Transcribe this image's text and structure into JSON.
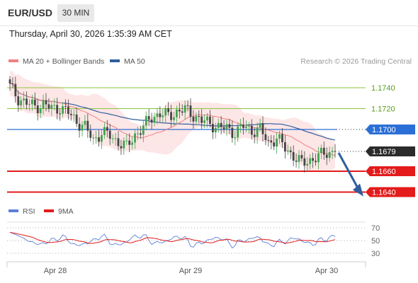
{
  "header": {
    "symbol": "EUR/USD",
    "timeframe": "30 MIN",
    "timestamp": "Thursday, April 30, 2026 1:35:39 AM CET"
  },
  "legend": {
    "items": [
      {
        "label": "MA 20 + Bollinger Bands",
        "color": "#f08080"
      },
      {
        "label": "MA 50",
        "color": "#2f5d9e"
      }
    ],
    "credit": "Research © 2026 Trading Central"
  },
  "chart_data": [
    {
      "type": "candlestick",
      "title": "EUR/USD 30 MIN",
      "ylim": [
        1.163,
        1.175
      ],
      "x_ticks": [
        "Apr 28",
        "Apr 29",
        "Apr 30"
      ],
      "horizontal_levels": [
        {
          "value": 1.174,
          "label": "1.1740",
          "color": "#8cc63f",
          "style": "resistance"
        },
        {
          "value": 1.172,
          "label": "1.1720",
          "color": "#8cc63f",
          "style": "resistance"
        },
        {
          "value": 1.17,
          "label": "1.1700",
          "color": "#2b6fd6",
          "style": "pivot"
        },
        {
          "value": 1.1679,
          "label": "1.1679",
          "color": "#333333",
          "style": "last"
        },
        {
          "value": 1.166,
          "label": "1.1660",
          "color": "#e31b1b",
          "style": "support"
        },
        {
          "value": 1.164,
          "label": "1.1640",
          "color": "#e31b1b",
          "style": "support"
        }
      ],
      "last_price": 1.1679,
      "close_path": [
        [
          0,
          1.1741
        ],
        [
          3,
          1.173
        ],
        [
          6,
          1.1725
        ],
        [
          9,
          1.1722
        ],
        [
          12,
          1.1724
        ],
        [
          15,
          1.172
        ],
        [
          18,
          1.1721
        ],
        [
          21,
          1.1716
        ],
        [
          24,
          1.1708
        ],
        [
          27,
          1.1702
        ],
        [
          30,
          1.169
        ],
        [
          33,
          1.1697
        ],
        [
          36,
          1.1694
        ],
        [
          39,
          1.1688
        ],
        [
          42,
          1.1683
        ],
        [
          45,
          1.1695
        ],
        [
          48,
          1.1702
        ],
        [
          51,
          1.1712
        ],
        [
          54,
          1.1715
        ],
        [
          57,
          1.1713
        ],
        [
          60,
          1.1717
        ],
        [
          63,
          1.1719
        ],
        [
          66,
          1.1714
        ],
        [
          69,
          1.1708
        ],
        [
          72,
          1.1706
        ],
        [
          75,
          1.1702
        ],
        [
          78,
          1.1701
        ],
        [
          81,
          1.1697
        ],
        [
          84,
          1.1703
        ],
        [
          87,
          1.1699
        ],
        [
          90,
          1.17
        ],
        [
          93,
          1.1687
        ],
        [
          96,
          1.1692
        ],
        [
          99,
          1.1682
        ],
        [
          102,
          1.1675
        ],
        [
          105,
          1.1667
        ],
        [
          108,
          1.1671
        ],
        [
          111,
          1.1674
        ],
        [
          114,
          1.1678
        ],
        [
          117,
          1.1679
        ]
      ],
      "series": [
        {
          "name": "MA 20",
          "color": "#f08080"
        },
        {
          "name": "MA 50",
          "color": "#2f5d9e"
        }
      ]
    },
    {
      "type": "line",
      "title": "RSI",
      "ylim": [
        20,
        80
      ],
      "y_ticks": [
        70,
        50,
        30
      ],
      "series": [
        {
          "name": "RSI",
          "color": "#5b7fd6"
        },
        {
          "name": "9MA",
          "color": "#e31b1b"
        }
      ]
    }
  ],
  "forecast_arrow": {
    "from": 1.1679,
    "to": 1.164,
    "color": "#2f5d9e"
  }
}
